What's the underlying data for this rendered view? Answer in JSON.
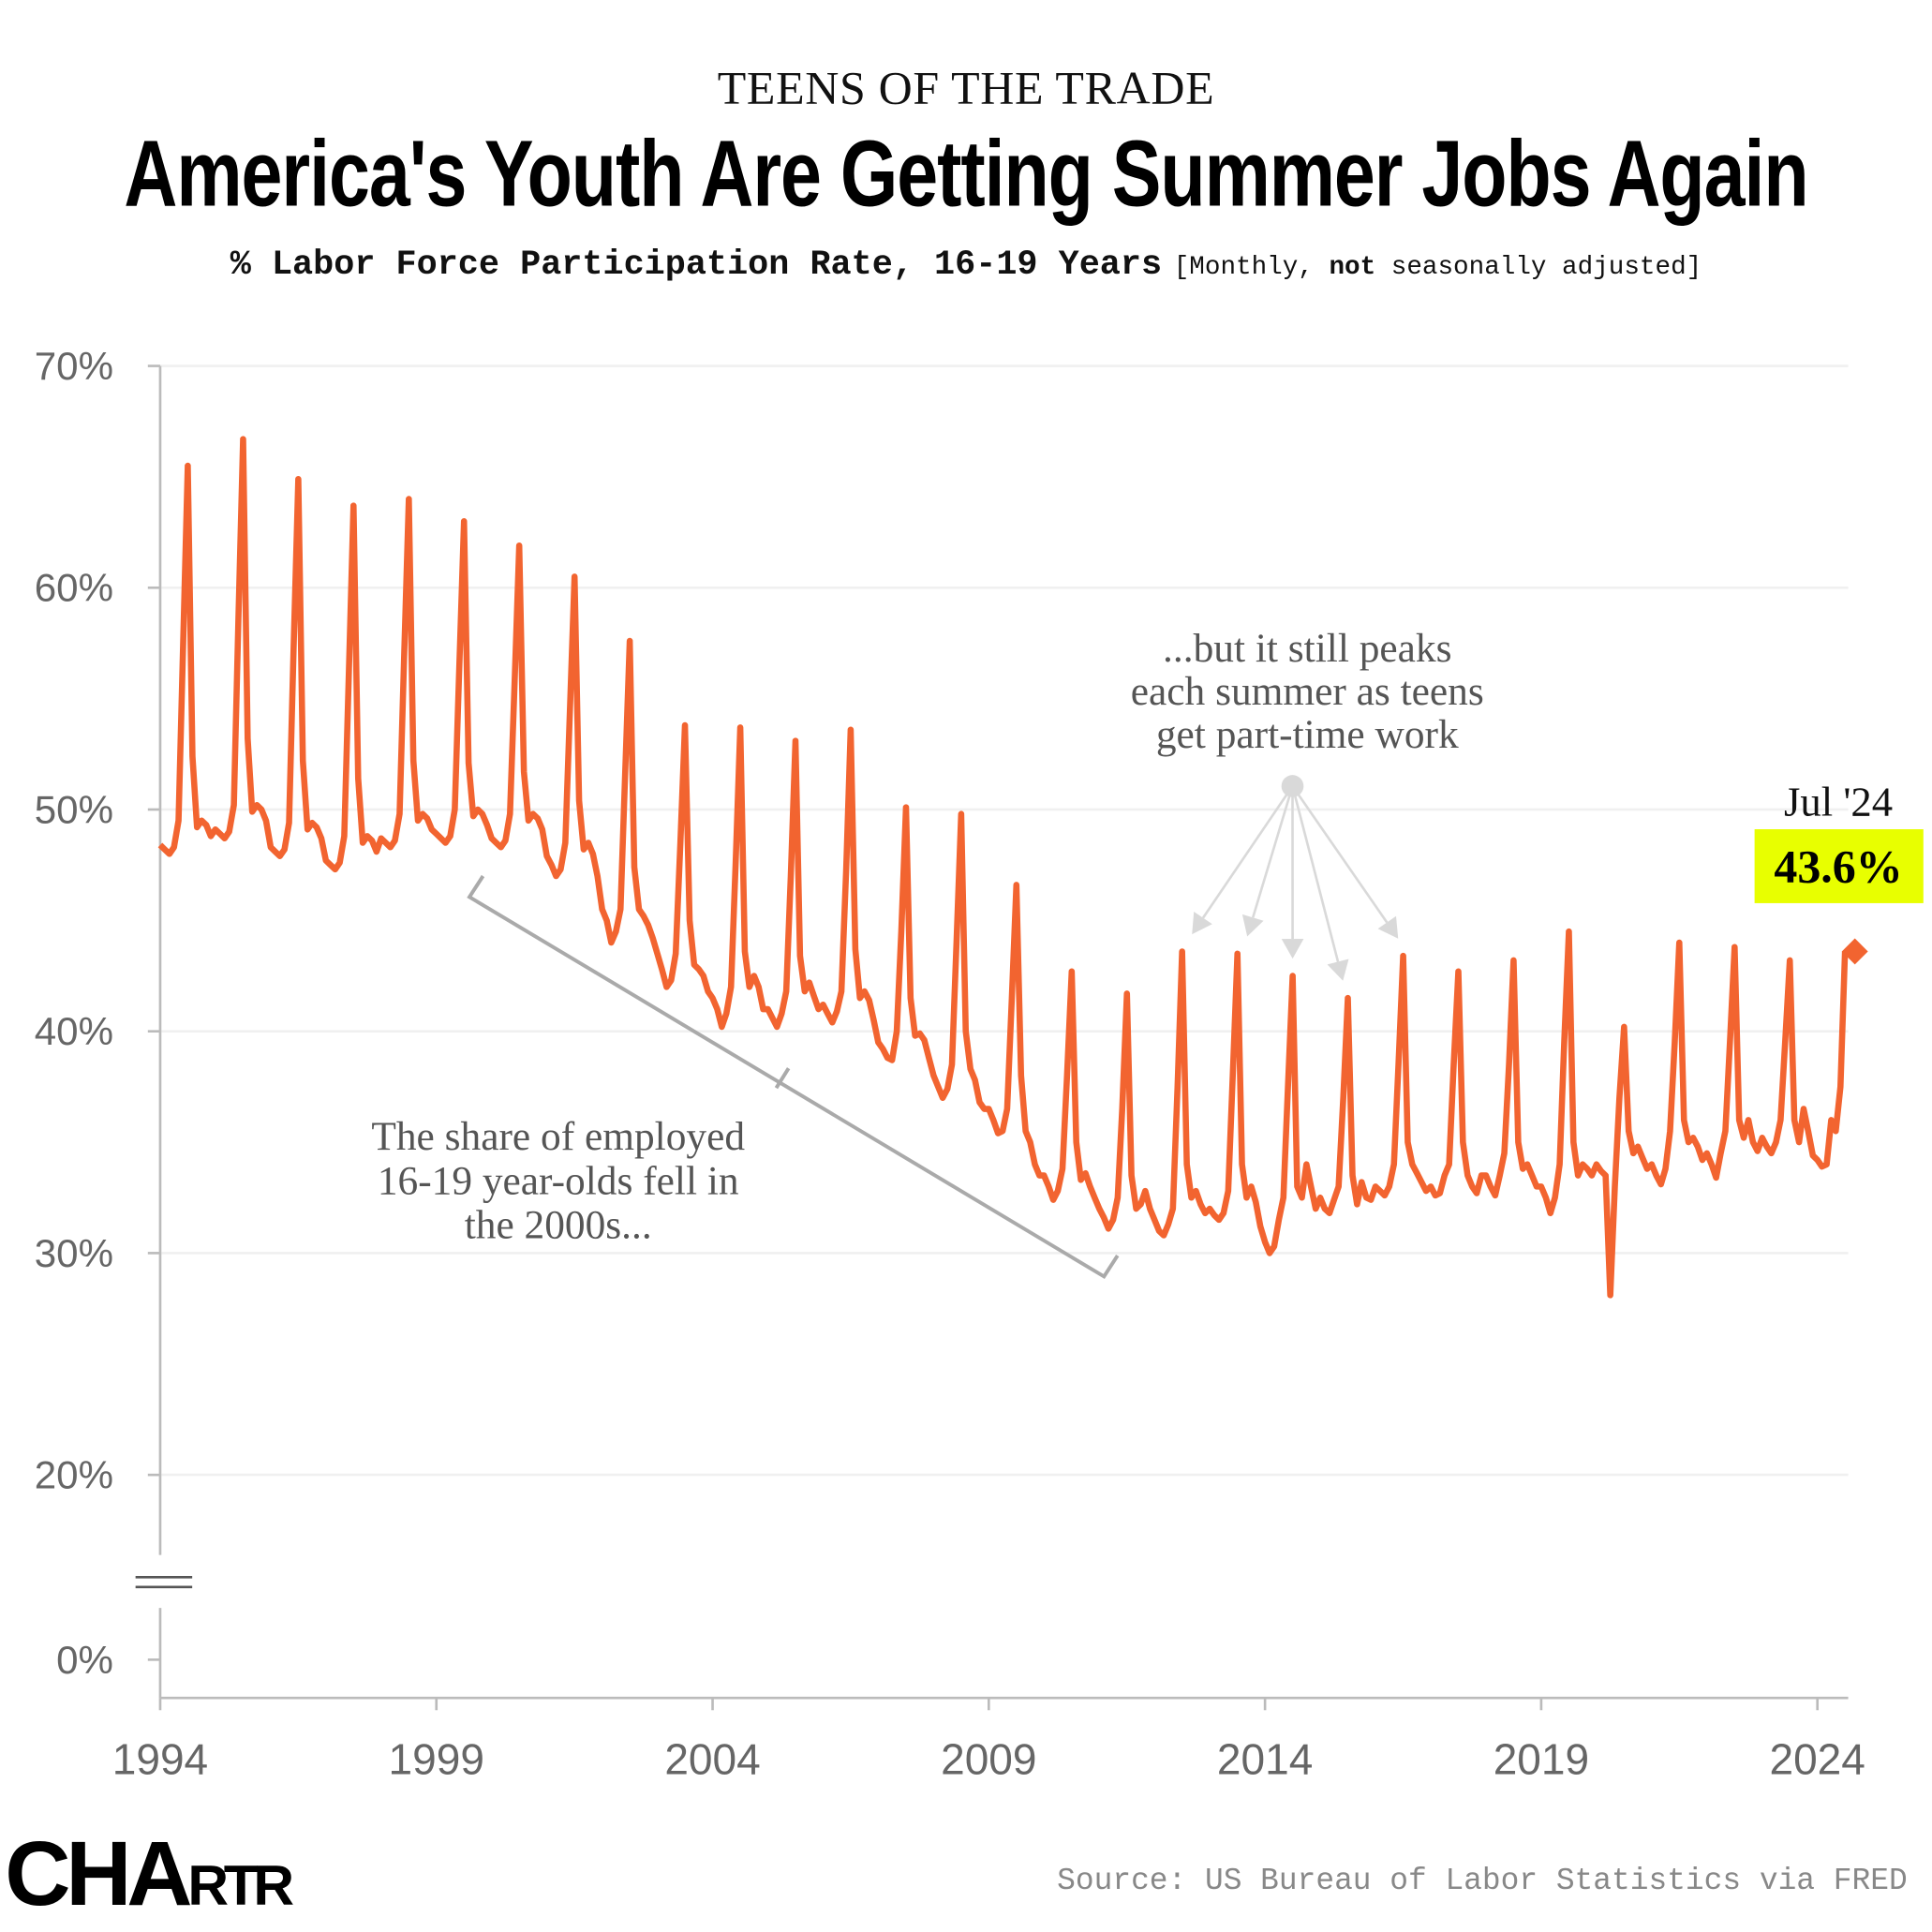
{
  "header": {
    "kicker": "TEENS OF THE TRADE",
    "title": "America's Youth Are Getting Summer Jobs Again",
    "subtitle_main": "% Labor Force Participation Rate, 16-19 Years",
    "subtitle_note_open": "[Monthly, ",
    "subtitle_note_bold": "not",
    "subtitle_note_close": " seasonally adjusted]"
  },
  "footer": {
    "logo": "CHARTR",
    "source": "Source: US Bureau of Labor Statistics via FRED"
  },
  "colors": {
    "line": "#f26430",
    "highlight": "#e8ff00",
    "annotation": "#d9d9d9",
    "bracket": "#aaaaaa"
  },
  "chart_data": {
    "type": "line",
    "title": "America's Youth Are Getting Summer Jobs Again",
    "ylabel": "% Labor Force Participation Rate, 16-19 Years",
    "y_ticks": [
      "70%",
      "60%",
      "50%",
      "40%",
      "30%",
      "20%",
      "0%"
    ],
    "y_tick_values": [
      70,
      60,
      50,
      40,
      30,
      20,
      0
    ],
    "x_ticks": [
      "1994",
      "1999",
      "2004",
      "2009",
      "2014",
      "2019",
      "2024"
    ],
    "ylim": [
      0,
      70
    ],
    "y_axis_break": true,
    "grid": "horizontal",
    "series": [
      {
        "frequency": "monthly",
        "values_by_year": {
          "1994": [
            48.4,
            48.2,
            48.0,
            48.3,
            49.5,
            57.6,
            65.5,
            52.4,
            49.2,
            49.5,
            49.3,
            48.8
          ],
          "1995": [
            49.1,
            48.9,
            48.7,
            49.0,
            50.2,
            58.6,
            66.7,
            53.2,
            49.9,
            50.2,
            50.0,
            49.5
          ],
          "1996": [
            48.3,
            48.1,
            47.9,
            48.2,
            49.4,
            57.3,
            64.9,
            52.2,
            49.1,
            49.4,
            49.2,
            48.7
          ],
          "1997": [
            47.7,
            47.5,
            47.3,
            47.6,
            48.8,
            56.3,
            63.7,
            51.4,
            48.5,
            48.8,
            48.6,
            48.1
          ],
          "1998": [
            48.7,
            48.5,
            48.3,
            48.6,
            49.8,
            56.9,
            64.0,
            52.2,
            49.5,
            49.8,
            49.6,
            49.1
          ],
          "1999": [
            48.9,
            48.7,
            48.5,
            48.8,
            50.0,
            56.5,
            63.0,
            52.1,
            49.7,
            50.0,
            49.8,
            49.3
          ],
          "2000": [
            48.7,
            48.5,
            48.3,
            48.6,
            49.8,
            55.8,
            61.9,
            51.7,
            49.5,
            49.8,
            49.6,
            49.1
          ],
          "2001": [
            47.9,
            47.5,
            47.0,
            47.3,
            48.5,
            54.4,
            60.5,
            50.4,
            48.2,
            48.5,
            48.0,
            47.0
          ],
          "2002": [
            45.5,
            45.0,
            44.0,
            44.5,
            45.5,
            51.5,
            57.6,
            47.4,
            45.5,
            45.2,
            44.8,
            44.2
          ],
          "2003": [
            43.5,
            42.8,
            42.0,
            42.3,
            43.5,
            48.5,
            53.8,
            45.0,
            43.0,
            42.8,
            42.5,
            41.8
          ],
          "2004": [
            41.5,
            41.0,
            40.2,
            40.8,
            42.0,
            47.5,
            53.7,
            43.6,
            42.0,
            42.5,
            42.0,
            41.0
          ],
          "2005": [
            41.0,
            40.6,
            40.2,
            40.8,
            41.8,
            47.0,
            53.1,
            43.4,
            41.8,
            42.2,
            41.6,
            41.0
          ],
          "2006": [
            41.2,
            40.8,
            40.4,
            40.9,
            41.8,
            47.2,
            53.6,
            43.7,
            41.5,
            41.8,
            41.4,
            40.5
          ],
          "2007": [
            39.5,
            39.2,
            38.8,
            38.7,
            40.0,
            44.5,
            50.1,
            41.5,
            39.8,
            39.9,
            39.6,
            38.8
          ],
          "2008": [
            38.0,
            37.5,
            37.0,
            37.4,
            38.5,
            44.0,
            49.8,
            40.0,
            38.3,
            37.8,
            36.8,
            36.5
          ],
          "2009": [
            36.5,
            36.0,
            35.4,
            35.5,
            36.5,
            41.5,
            46.6,
            38.0,
            35.5,
            35.0,
            34.0,
            33.5
          ],
          "2010": [
            33.5,
            33.0,
            32.4,
            32.8,
            33.8,
            38.0,
            42.7,
            35.0,
            33.3,
            33.6,
            33.0,
            32.5
          ],
          "2011": [
            32.0,
            31.6,
            31.1,
            31.5,
            32.5,
            36.5,
            41.7,
            33.5,
            32.0,
            32.2,
            32.8,
            32.0
          ],
          "2012": [
            31.5,
            31.0,
            30.8,
            31.3,
            32.0,
            37.5,
            43.6,
            34.0,
            32.5,
            32.8,
            32.2,
            31.8
          ],
          "2013": [
            32.0,
            31.7,
            31.5,
            31.8,
            32.8,
            38.0,
            43.5,
            34.0,
            32.5,
            33.0,
            32.3,
            31.2
          ],
          "2014": [
            30.5,
            30.0,
            30.3,
            31.5,
            32.5,
            37.5,
            42.5,
            33.0,
            32.5,
            34.0,
            33.0,
            32.0
          ],
          "2015": [
            32.5,
            32.0,
            31.8,
            32.4,
            33.0,
            37.0,
            41.5,
            33.5,
            32.2,
            33.2,
            32.5,
            32.4
          ],
          "2016": [
            33.0,
            32.8,
            32.6,
            33.0,
            34.0,
            38.5,
            43.4,
            35.0,
            34.0,
            33.6,
            33.2,
            32.8
          ],
          "2017": [
            33.0,
            32.6,
            32.7,
            33.5,
            34.0,
            38.5,
            42.7,
            35.0,
            33.5,
            33.0,
            32.7,
            33.5
          ],
          "2018": [
            33.5,
            33.0,
            32.6,
            33.5,
            34.5,
            38.5,
            43.2,
            35.0,
            33.8,
            34.0,
            33.5,
            33.0
          ],
          "2019": [
            33.0,
            32.5,
            31.8,
            32.5,
            34.0,
            39.5,
            44.5,
            35.0,
            33.5,
            34.0,
            33.8,
            33.5
          ],
          "2020": [
            34.0,
            33.7,
            33.5,
            28.1,
            33.0,
            37.0,
            40.2,
            35.5,
            34.5,
            34.8,
            34.3,
            33.8
          ],
          "2021": [
            34.0,
            33.5,
            33.1,
            33.8,
            35.5,
            39.5,
            44.0,
            36.0,
            35.0,
            35.2,
            34.8,
            34.2
          ],
          "2022": [
            34.5,
            34.0,
            33.4,
            34.5,
            35.5,
            39.5,
            43.8,
            36.0,
            35.2,
            36.0,
            35.0,
            34.6
          ],
          "2023": [
            35.2,
            34.8,
            34.5,
            35.0,
            36.0,
            39.5,
            43.2,
            36.0,
            35.0,
            36.5,
            35.5,
            34.4
          ],
          "2024": [
            34.2,
            33.9,
            34.0,
            36.0,
            35.5,
            37.5,
            43.6
          ]
        }
      }
    ],
    "latest": {
      "label": "Jul '24",
      "value_label": "43.6%",
      "value": 43.6
    },
    "annotations": {
      "decline": [
        "The share of employed",
        "16-19 year-olds fell in",
        "the 2000s..."
      ],
      "peaks": [
        "...but it still peaks",
        "each summer as teens",
        "get part-time work"
      ],
      "peak_arrow_years": [
        2012,
        2013,
        2014,
        2015,
        2016
      ]
    }
  }
}
